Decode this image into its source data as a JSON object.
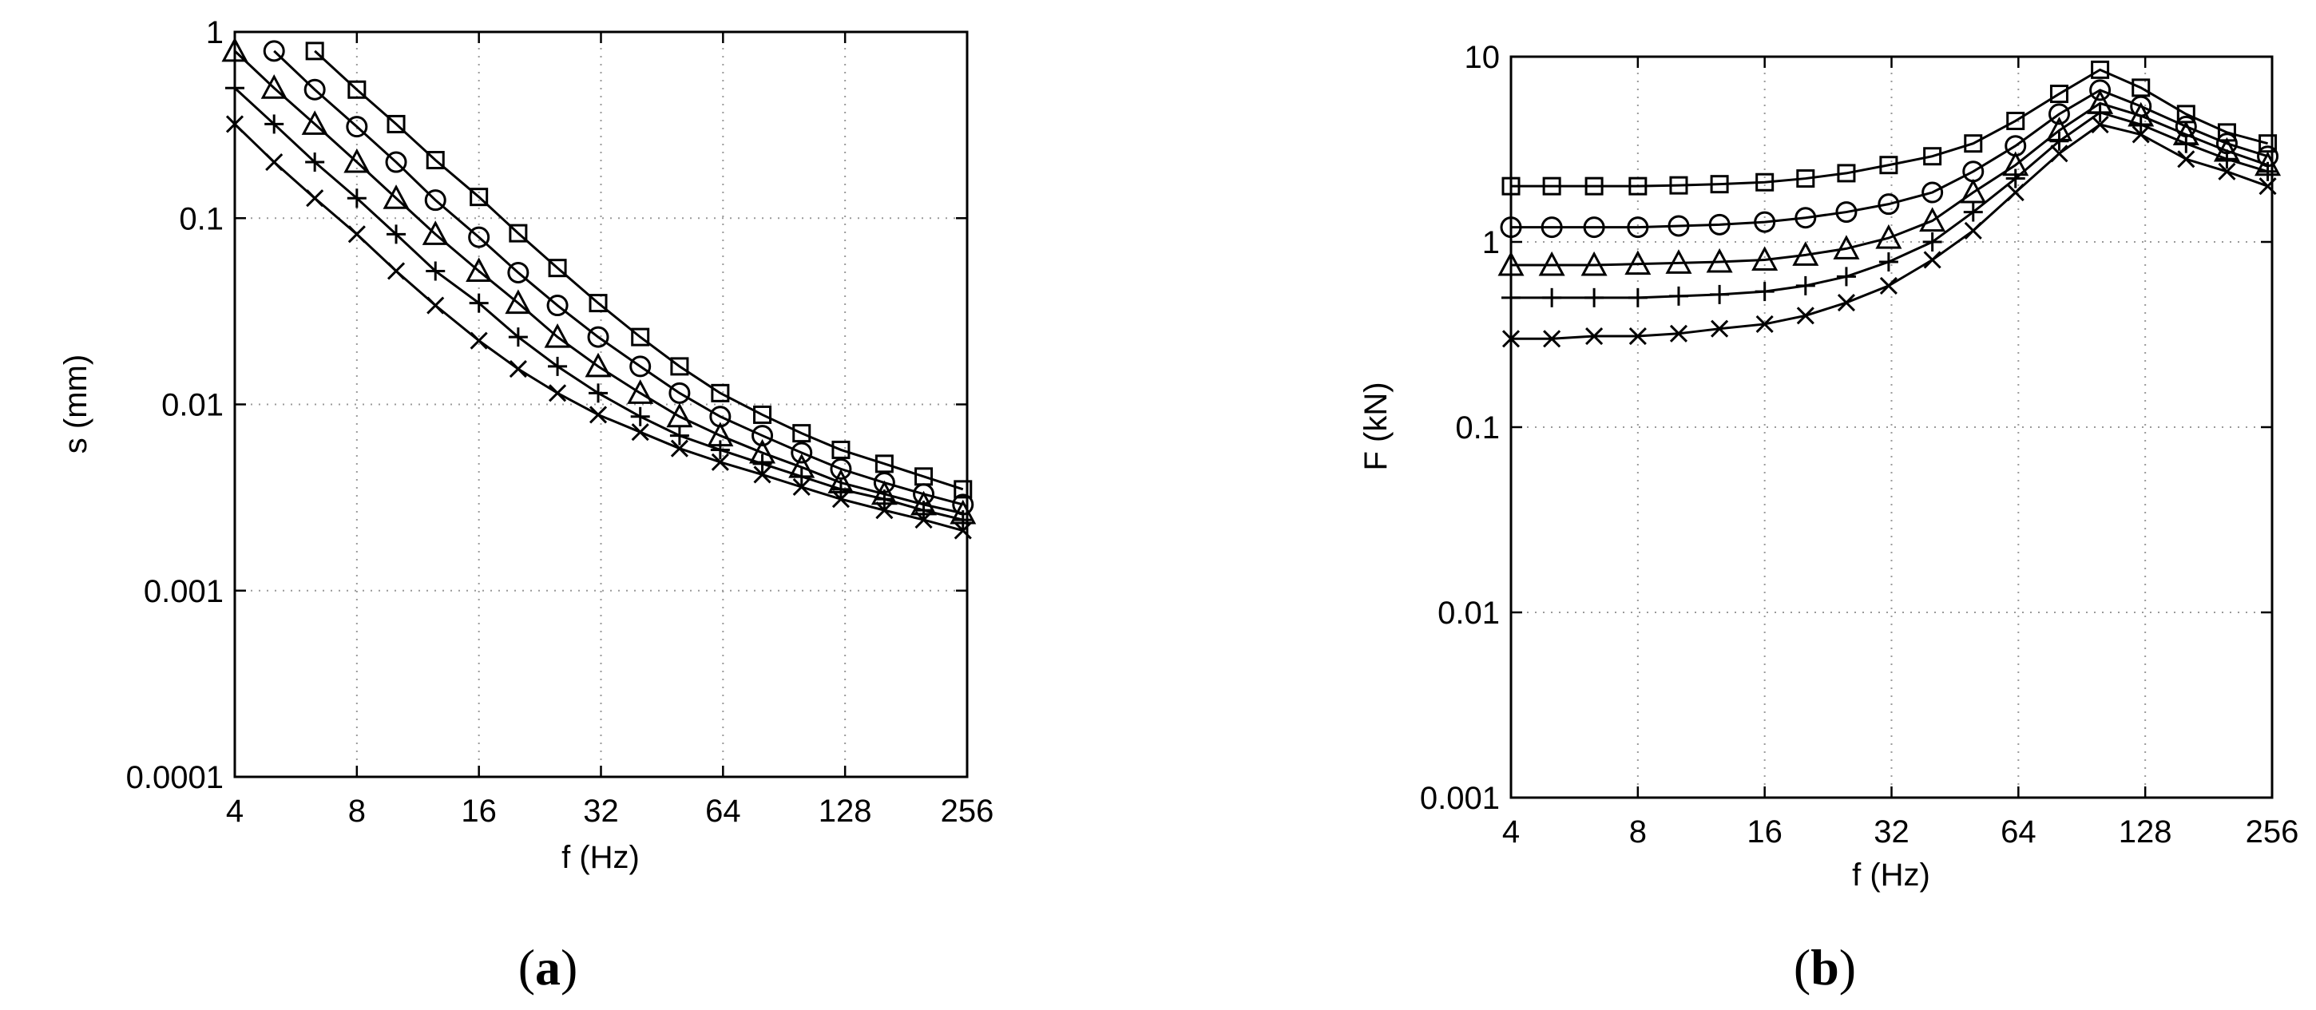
{
  "chart_data": [
    {
      "id": "a",
      "panel_label": "(a)",
      "type": "line",
      "xlabel": "f (Hz)",
      "ylabel": "s (mm)",
      "xscale": "log",
      "yscale": "log",
      "xlim": [
        4,
        256
      ],
      "ylim": [
        0.0001,
        1
      ],
      "xticks": [
        4,
        8,
        16,
        32,
        64,
        128,
        256
      ],
      "xtick_labels": [
        "4",
        "8",
        "16",
        "32",
        "64",
        "128",
        "256"
      ],
      "yticks": [
        0.0001,
        0.001,
        0.01,
        0.1,
        1
      ],
      "ytick_labels": [
        "0.0001",
        "0.001",
        "0.01",
        "0.1",
        "1"
      ],
      "grid": true,
      "series": [
        {
          "marker": "square",
          "x": [
            6.3,
            8,
            10,
            12.5,
            16,
            20,
            25,
            31.5,
            40,
            50,
            63,
            80,
            100,
            125,
            160,
            200,
            250
          ],
          "y": [
            0.79,
            0.49,
            0.32,
            0.205,
            0.13,
            0.083,
            0.054,
            0.035,
            0.023,
            0.016,
            0.0115,
            0.0088,
            0.007,
            0.0057,
            0.0048,
            0.0041,
            0.0035
          ]
        },
        {
          "marker": "circle",
          "x": [
            5,
            6.3,
            8,
            10,
            12.5,
            16,
            20,
            25,
            31.5,
            40,
            50,
            63,
            80,
            100,
            125,
            160,
            200,
            250
          ],
          "y": [
            0.79,
            0.49,
            0.31,
            0.2,
            0.125,
            0.079,
            0.051,
            0.034,
            0.023,
            0.016,
            0.0115,
            0.0086,
            0.0068,
            0.0055,
            0.0045,
            0.0038,
            0.0033,
            0.0029
          ]
        },
        {
          "marker": "triangle",
          "x": [
            4,
            5,
            6.3,
            8,
            10,
            12.5,
            16,
            20,
            25,
            31.5,
            40,
            50,
            63,
            80,
            100,
            125,
            160,
            200,
            250
          ],
          "y": [
            0.79,
            0.5,
            0.32,
            0.2,
            0.128,
            0.082,
            0.052,
            0.035,
            0.023,
            0.016,
            0.0115,
            0.0086,
            0.0068,
            0.0055,
            0.0046,
            0.0038,
            0.0033,
            0.0029,
            0.0026
          ]
        },
        {
          "marker": "plus",
          "x": [
            4,
            5,
            6.3,
            8,
            10,
            12.5,
            16,
            20,
            25,
            31.5,
            40,
            50,
            63,
            80,
            100,
            125,
            160,
            200,
            250
          ],
          "y": [
            0.5,
            0.32,
            0.2,
            0.128,
            0.082,
            0.052,
            0.035,
            0.023,
            0.016,
            0.0115,
            0.0086,
            0.0068,
            0.0057,
            0.0048,
            0.0041,
            0.0035,
            0.0031,
            0.0027,
            0.0024
          ]
        },
        {
          "marker": "x",
          "x": [
            4,
            5,
            6.3,
            8,
            10,
            12.5,
            16,
            20,
            25,
            31.5,
            40,
            50,
            63,
            80,
            100,
            125,
            160,
            200,
            250
          ],
          "y": [
            0.32,
            0.2,
            0.128,
            0.082,
            0.052,
            0.034,
            0.022,
            0.0155,
            0.0115,
            0.0088,
            0.0071,
            0.0058,
            0.0049,
            0.0042,
            0.0036,
            0.0031,
            0.0027,
            0.0024,
            0.0021
          ]
        }
      ]
    },
    {
      "id": "b",
      "panel_label": "(b)",
      "type": "line",
      "xlabel": "f (Hz)",
      "ylabel": "F (kN)",
      "xscale": "log",
      "yscale": "log",
      "xlim": [
        4,
        256
      ],
      "ylim": [
        0.001,
        10
      ],
      "xticks": [
        4,
        8,
        16,
        32,
        64,
        128,
        256
      ],
      "xtick_labels": [
        "4",
        "8",
        "16",
        "32",
        "64",
        "128",
        "256"
      ],
      "yticks": [
        0.001,
        0.01,
        0.1,
        1,
        10
      ],
      "ytick_labels": [
        "0.001",
        "0.01",
        "0.1",
        "1",
        "10"
      ],
      "grid": true,
      "series": [
        {
          "marker": "square",
          "x": [
            4,
            5,
            6.3,
            8,
            10,
            12.5,
            16,
            20,
            25,
            31.5,
            40,
            50,
            63,
            80,
            100,
            125,
            160,
            200,
            250
          ],
          "y": [
            2.0,
            2.0,
            2.0,
            2.0,
            2.02,
            2.05,
            2.1,
            2.2,
            2.35,
            2.6,
            2.9,
            3.4,
            4.5,
            6.3,
            8.5,
            6.8,
            4.9,
            3.9,
            3.4
          ]
        },
        {
          "marker": "circle",
          "x": [
            4,
            5,
            6.3,
            8,
            10,
            12.5,
            16,
            20,
            25,
            31.5,
            40,
            50,
            63,
            80,
            100,
            125,
            160,
            200,
            250
          ],
          "y": [
            1.2,
            1.2,
            1.2,
            1.2,
            1.22,
            1.24,
            1.28,
            1.35,
            1.45,
            1.6,
            1.85,
            2.4,
            3.3,
            4.9,
            6.6,
            5.4,
            4.2,
            3.4,
            2.9
          ]
        },
        {
          "marker": "triangle",
          "x": [
            4,
            5,
            6.3,
            8,
            10,
            12.5,
            16,
            20,
            25,
            31.5,
            40,
            50,
            63,
            80,
            100,
            125,
            160,
            200,
            250
          ],
          "y": [
            0.75,
            0.75,
            0.75,
            0.76,
            0.77,
            0.78,
            0.8,
            0.85,
            0.92,
            1.05,
            1.3,
            1.85,
            2.6,
            4.0,
            5.6,
            4.8,
            3.8,
            3.1,
            2.6
          ]
        },
        {
          "marker": "plus",
          "x": [
            4,
            5,
            6.3,
            8,
            10,
            12.5,
            16,
            20,
            25,
            31.5,
            40,
            50,
            63,
            80,
            100,
            125,
            160,
            200,
            250
          ],
          "y": [
            0.5,
            0.5,
            0.5,
            0.5,
            0.51,
            0.52,
            0.54,
            0.58,
            0.65,
            0.78,
            1.0,
            1.45,
            2.2,
            3.5,
            5.0,
            4.3,
            3.4,
            2.8,
            2.4
          ]
        },
        {
          "marker": "x",
          "x": [
            4,
            5,
            6.3,
            8,
            10,
            12.5,
            16,
            20,
            25,
            31.5,
            40,
            50,
            63,
            80,
            100,
            125,
            160,
            200,
            250
          ],
          "y": [
            0.3,
            0.3,
            0.31,
            0.31,
            0.32,
            0.34,
            0.36,
            0.4,
            0.47,
            0.58,
            0.8,
            1.15,
            1.85,
            3.0,
            4.3,
            3.8,
            2.8,
            2.4,
            2.0
          ]
        }
      ]
    }
  ]
}
